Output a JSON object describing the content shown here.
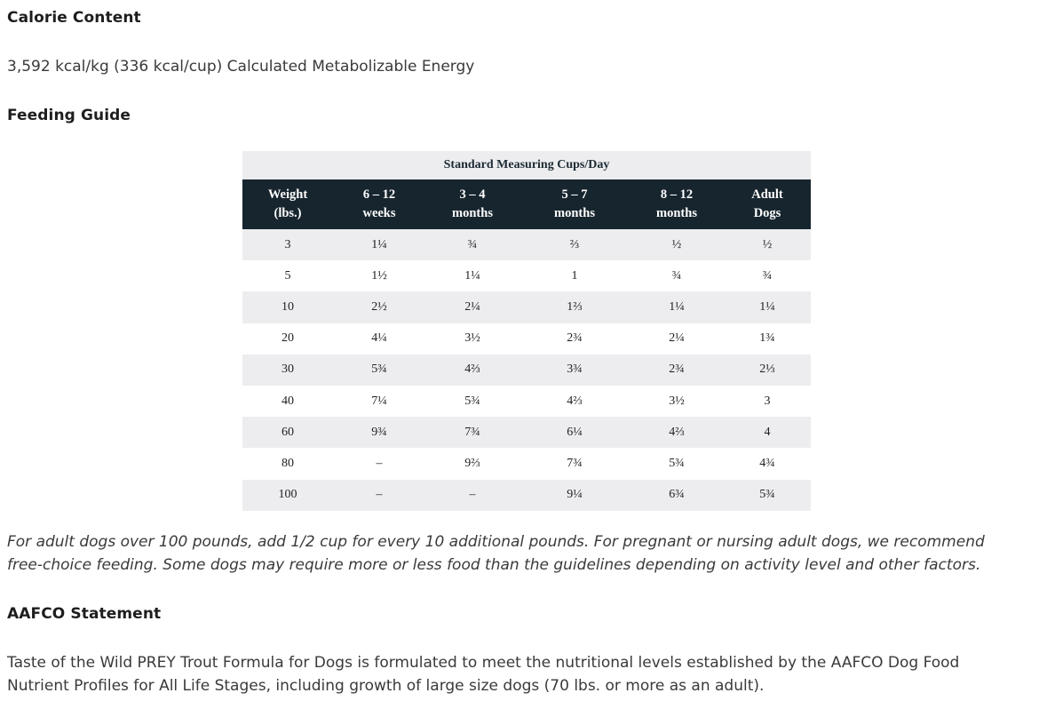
{
  "calorie": {
    "heading": "Calorie Content",
    "text": "3,592 kcal/kg (336 kcal/cup) Calculated Metabolizable Energy"
  },
  "feeding": {
    "heading": "Feeding Guide",
    "table": {
      "caption": "Standard Measuring Cups/Day",
      "headers": [
        {
          "line1": "Weight",
          "line2": "(lbs.)"
        },
        {
          "line1": "6 – 12",
          "line2": "weeks"
        },
        {
          "line1": "3 – 4",
          "line2": "months"
        },
        {
          "line1": "5 – 7",
          "line2": "months"
        },
        {
          "line1": "8 – 12",
          "line2": "months"
        },
        {
          "line1": "Adult",
          "line2": "Dogs"
        }
      ],
      "rows": [
        [
          "3",
          "1¼",
          "¾",
          "⅔",
          "½",
          "½"
        ],
        [
          "5",
          "1½",
          "1¼",
          "1",
          "¾",
          "¾"
        ],
        [
          "10",
          "2½",
          "2¼",
          "1⅔",
          "1¼",
          "1¼"
        ],
        [
          "20",
          "4¼",
          "3½",
          "2¾",
          "2¼",
          "1¾"
        ],
        [
          "30",
          "5¾",
          "4⅔",
          "3¾",
          "2¾",
          "2⅓"
        ],
        [
          "40",
          "7¼",
          "5¾",
          "4⅔",
          "3½",
          "3"
        ],
        [
          "60",
          "9¾",
          "7¾",
          "6¼",
          "4⅔",
          "4"
        ],
        [
          "80",
          "–",
          "9⅔",
          "7¾",
          "5¾",
          "4¾"
        ],
        [
          "100",
          "–",
          "–",
          "9¼",
          "6¾",
          "5¾"
        ]
      ]
    },
    "note_line1": "For adult dogs over 100 pounds, add 1/2 cup for every 10 additional pounds. For pregnant or nursing adult dogs, we recommend",
    "note_line2": "free-choice feeding. Some dogs may require more or less food than the guidelines depending on activity level and other factors."
  },
  "aafco": {
    "heading": "AAFCO Statement",
    "line1": "Taste of the Wild PREY Trout Formula for Dogs is formulated to meet the nutritional levels established by the AAFCO Dog Food",
    "line2": "Nutrient Profiles for All Life Stages, including growth of large size dogs (70 lbs. or more as an adult)."
  },
  "colors": {
    "table_header_bg": "#17252e",
    "table_shade_bg": "#ededf0"
  }
}
